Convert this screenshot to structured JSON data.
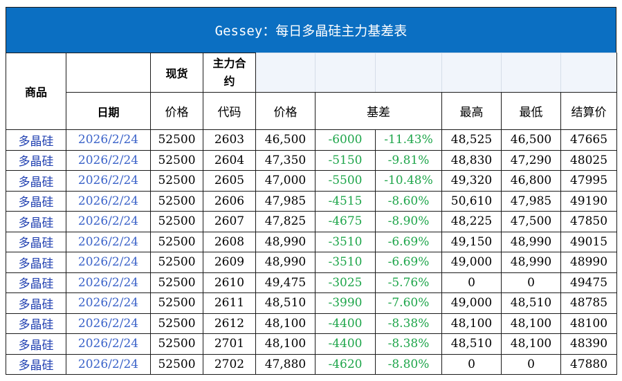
{
  "title": "Gessey：每日多晶硅主力基差表",
  "headers": {
    "product": "商品",
    "spot": "现货",
    "main_contract": "主力合约",
    "date": "日期",
    "spot_price": "价格",
    "code": "代码",
    "futures_price": "价格",
    "basis": "基差",
    "high": "最高",
    "low": "最低",
    "settle": "结算价"
  },
  "rows": [
    {
      "product": "多晶硅",
      "date": "2026/2/24",
      "spot": "52500",
      "code": "2603",
      "price": "46,500",
      "basis": "-6000",
      "basis_pct": "-11.43%",
      "high": "48,525",
      "low": "46,500",
      "settle": "47665"
    },
    {
      "product": "多晶硅",
      "date": "2026/2/24",
      "spot": "52500",
      "code": "2604",
      "price": "47,350",
      "basis": "-5150",
      "basis_pct": "-9.81%",
      "high": "48,830",
      "low": "47,290",
      "settle": "48025"
    },
    {
      "product": "多晶硅",
      "date": "2026/2/24",
      "spot": "52500",
      "code": "2605",
      "price": "47,000",
      "basis": "-5500",
      "basis_pct": "-10.48%",
      "high": "49,320",
      "low": "46,800",
      "settle": "47995"
    },
    {
      "product": "多晶硅",
      "date": "2026/2/24",
      "spot": "52500",
      "code": "2606",
      "price": "47,985",
      "basis": "-4515",
      "basis_pct": "-8.60%",
      "high": "50,610",
      "low": "47,985",
      "settle": "49190"
    },
    {
      "product": "多晶硅",
      "date": "2026/2/24",
      "spot": "52500",
      "code": "2607",
      "price": "47,825",
      "basis": "-4675",
      "basis_pct": "-8.90%",
      "high": "48,225",
      "low": "47,500",
      "settle": "47850"
    },
    {
      "product": "多晶硅",
      "date": "2026/2/24",
      "spot": "52500",
      "code": "2608",
      "price": "48,990",
      "basis": "-3510",
      "basis_pct": "-6.69%",
      "high": "49,150",
      "low": "48,990",
      "settle": "49015"
    },
    {
      "product": "多晶硅",
      "date": "2026/2/24",
      "spot": "52500",
      "code": "2609",
      "price": "48,990",
      "basis": "-3510",
      "basis_pct": "-6.69%",
      "high": "49,000",
      "low": "48,990",
      "settle": "48990"
    },
    {
      "product": "多晶硅",
      "date": "2026/2/24",
      "spot": "52500",
      "code": "2610",
      "price": "49,475",
      "basis": "-3025",
      "basis_pct": "-5.76%",
      "high": "0",
      "low": "0",
      "settle": "49475"
    },
    {
      "product": "多晶硅",
      "date": "2026/2/24",
      "spot": "52500",
      "code": "2611",
      "price": "48,510",
      "basis": "-3990",
      "basis_pct": "-7.60%",
      "high": "49,000",
      "low": "48,510",
      "settle": "48785"
    },
    {
      "product": "多晶硅",
      "date": "2026/2/24",
      "spot": "52500",
      "code": "2612",
      "price": "48,100",
      "basis": "-4400",
      "basis_pct": "-8.38%",
      "high": "48,100",
      "low": "48,100",
      "settle": "48100"
    },
    {
      "product": "多晶硅",
      "date": "2026/2/24",
      "spot": "52500",
      "code": "2701",
      "price": "48,100",
      "basis": "-4400",
      "basis_pct": "-8.38%",
      "high": "48,510",
      "low": "48,100",
      "settle": "48390"
    },
    {
      "product": "多晶硅",
      "date": "2026/2/24",
      "spot": "52500",
      "code": "2702",
      "price": "47,880",
      "basis": "-4620",
      "basis_pct": "-8.80%",
      "high": "0",
      "low": "0",
      "settle": "47880"
    }
  ],
  "colors": {
    "title_bg": "#0b6fc2",
    "basis_text": "#1ea54a",
    "product_text": "#1f3fb0",
    "date_text": "#3b63c9"
  }
}
